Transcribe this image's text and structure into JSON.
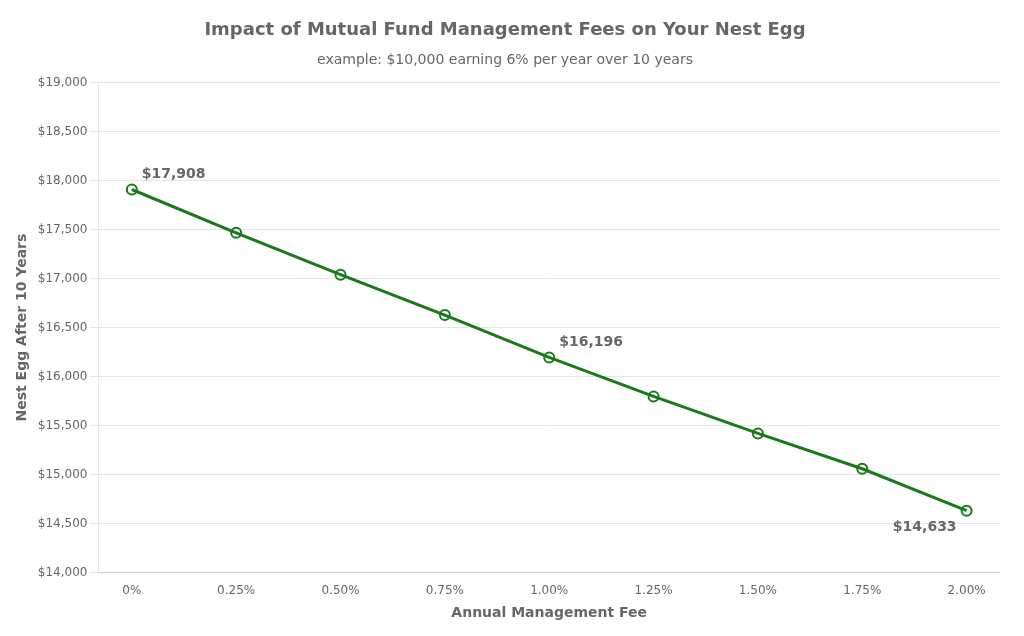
{
  "chart_data": {
    "type": "line",
    "title": "Impact of Mutual Fund Management Fees on Your Nest Egg",
    "subtitle": "example: $10,000 earning 6% per year over 10 years",
    "x_label": "Annual Management Fee",
    "y_label": "Nest Egg After 10 Years",
    "x": [
      0.0,
      0.25,
      0.5,
      0.75,
      1.0,
      1.25,
      1.5,
      1.75,
      2.0
    ],
    "values": [
      17908,
      17466,
      17040,
      16628,
      16196,
      15798,
      15421,
      15061,
      14633
    ],
    "color": "#1a7a1a",
    "marker": "circle",
    "xlim": [
      -0.08,
      2.08
    ],
    "xticks": [
      {
        "value": 0.0,
        "label": "0%"
      },
      {
        "value": 0.25,
        "label": "0.25%"
      },
      {
        "value": 0.5,
        "label": "0.50%"
      },
      {
        "value": 0.75,
        "label": "0.75%"
      },
      {
        "value": 1.0,
        "label": "1.00%"
      },
      {
        "value": 1.25,
        "label": "1.25%"
      },
      {
        "value": 1.5,
        "label": "1.50%"
      },
      {
        "value": 1.75,
        "label": "1.75%"
      },
      {
        "value": 2.0,
        "label": "2.00%"
      }
    ],
    "ylim": [
      14000,
      19000
    ],
    "yticks": [
      {
        "value": 14000,
        "label": "$14,000"
      },
      {
        "value": 14500,
        "label": "$14,500"
      },
      {
        "value": 15000,
        "label": "$15,000"
      },
      {
        "value": 15500,
        "label": "$15,500"
      },
      {
        "value": 16000,
        "label": "$16,000"
      },
      {
        "value": 16500,
        "label": "$16,500"
      },
      {
        "value": 17000,
        "label": "$17,000"
      },
      {
        "value": 17500,
        "label": "$17,500"
      },
      {
        "value": 18000,
        "label": "$18,000"
      },
      {
        "value": 18500,
        "label": "$18,500"
      },
      {
        "value": 19000,
        "label": "$19,000"
      }
    ],
    "grid": "y",
    "annotations": [
      {
        "x": 0.0,
        "y": 17908,
        "label": "$17,908"
      },
      {
        "x": 1.0,
        "y": 16196,
        "label": "$16,196"
      },
      {
        "x": 2.0,
        "y": 14633,
        "label": "$14,633"
      }
    ]
  }
}
